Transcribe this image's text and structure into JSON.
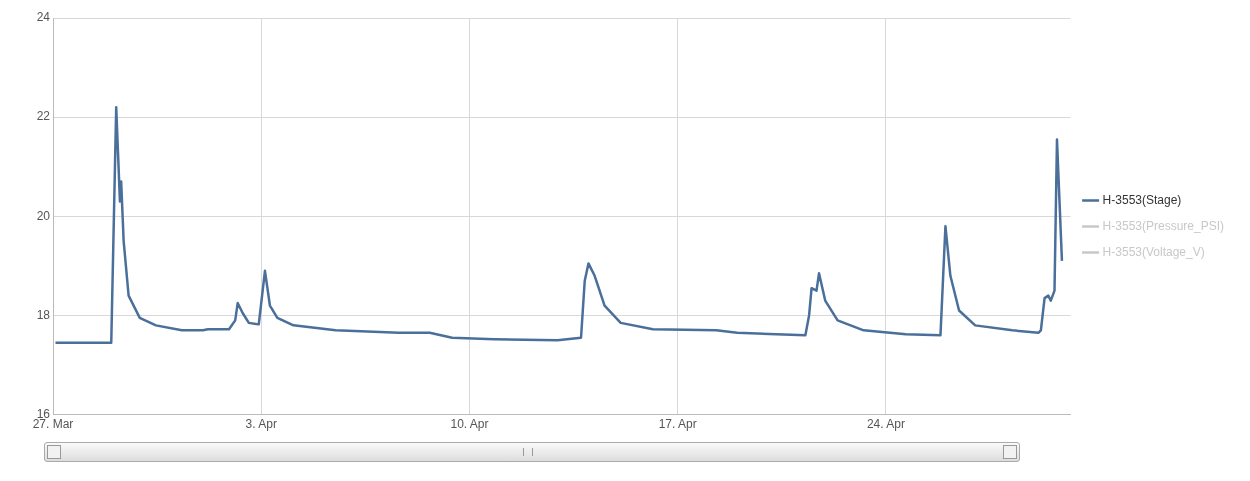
{
  "chart_data": {
    "type": "line",
    "x": [
      "--03-27T02:00",
      "--03-28T23:00",
      "--03-29T03:00",
      "--03-29T06:00",
      "--03-29T07:00",
      "--03-29T09:00",
      "--03-29T13:00",
      "--03-29T22:00",
      "--03-30T11:00",
      "--03-31T08:00",
      "--04-01T01:00",
      "--04-01T05:00",
      "--04-01T22:00",
      "--04-02T03:00",
      "--04-02T05:00",
      "--04-02T09:00",
      "--04-02T14:00",
      "--04-02T22:00",
      "--04-03T03:00",
      "--04-03T07:00",
      "--04-03T13:00",
      "--04-04T02:00",
      "--04-05T12:00",
      "--04-07T15:00",
      "--04-08T16:00",
      "--04-09T10:00",
      "--04-10T20:00",
      "--04-12T23:00",
      "--04-13T18:00",
      "--04-13T21:00",
      "--04-14T00:00",
      "--04-14T05:00",
      "--04-14T13:00",
      "--04-15T02:00",
      "--04-16T04:00",
      "--04-18T07:00",
      "--04-19T00:00",
      "--04-21T07:00",
      "--04-21T10:00",
      "--04-21T12:00",
      "--04-21T16:00",
      "--04-21T18:00",
      "--04-21T23:00",
      "--04-22T09:00",
      "--04-23T06:00",
      "--04-24T16:00",
      "--04-25T20:00",
      "--04-26T00:00",
      "--04-26T04:00",
      "--04-26T11:00",
      "--04-27T00:00",
      "--04-28T06:00",
      "--04-29T03:00",
      "--04-29T05:00",
      "--04-29T08:00",
      "--04-29T11:00",
      "--04-29T13:00",
      "--04-29T16:00",
      "--04-29T18:00",
      "--04-29T22:00"
    ],
    "series": [
      {
        "name": "H-3553(Stage)",
        "color": "#4a6f9a",
        "values": [
          17.45,
          17.45,
          22.2,
          20.3,
          20.7,
          19.5,
          18.4,
          17.95,
          17.8,
          17.7,
          17.7,
          17.72,
          17.72,
          17.9,
          18.25,
          18.05,
          17.85,
          17.82,
          18.9,
          18.2,
          17.95,
          17.8,
          17.7,
          17.65,
          17.65,
          17.55,
          17.52,
          17.5,
          17.55,
          18.7,
          19.05,
          18.8,
          18.2,
          17.85,
          17.72,
          17.7,
          17.65,
          17.6,
          18.0,
          18.55,
          18.5,
          18.85,
          18.3,
          17.9,
          17.7,
          17.62,
          17.6,
          19.8,
          18.8,
          18.1,
          17.8,
          17.7,
          17.65,
          17.7,
          18.35,
          18.4,
          18.3,
          18.5,
          21.55,
          19.1
        ]
      },
      {
        "name": "H-3553(Pressure_PSI)",
        "color": "#c8c8c8",
        "values": [
          null,
          null,
          null,
          null,
          null,
          null,
          null,
          null,
          null,
          null,
          null,
          null,
          null,
          null,
          null,
          null,
          null,
          null,
          null,
          null,
          null,
          null,
          null,
          null,
          null,
          null,
          null,
          null,
          null,
          null,
          null,
          null,
          null,
          null,
          null,
          null,
          null,
          null,
          null,
          null,
          null,
          null,
          null,
          null,
          null,
          null,
          null,
          null,
          null,
          null,
          null,
          null,
          null,
          null,
          null,
          null,
          null,
          null,
          null,
          null
        ]
      },
      {
        "name": "H-3553(Voltage_V)",
        "color": "#c8c8c8",
        "values": [
          null,
          null,
          null,
          null,
          null,
          null,
          null,
          null,
          null,
          null,
          null,
          null,
          null,
          null,
          null,
          null,
          null,
          null,
          null,
          null,
          null,
          null,
          null,
          null,
          null,
          null,
          null,
          null,
          null,
          null,
          null,
          null,
          null,
          null,
          null,
          null,
          null,
          null,
          null,
          null,
          null,
          null,
          null,
          null,
          null,
          null,
          null,
          null,
          null,
          null,
          null,
          null,
          null,
          null,
          null,
          null,
          null,
          null,
          null,
          null
        ]
      }
    ],
    "xlim": [
      "--03-27T00:00",
      "--04-30T05:00"
    ],
    "xticks": [
      {
        "value": "--03-27",
        "label": "27. Mar"
      },
      {
        "value": "--04-03",
        "label": "3. Apr"
      },
      {
        "value": "--04-10",
        "label": "10. Apr"
      },
      {
        "value": "--04-17",
        "label": "17. Apr"
      },
      {
        "value": "--04-24",
        "label": "24. Apr"
      }
    ],
    "ylim": [
      16,
      24
    ],
    "yticks": [
      16,
      18,
      20,
      22,
      24
    ],
    "grid": true,
    "legend": "right",
    "marker": "none",
    "line_style": "solid"
  }
}
